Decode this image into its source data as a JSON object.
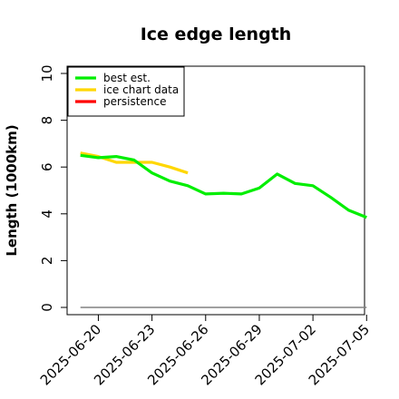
{
  "chart_data": {
    "type": "line",
    "title": "Ice edge length",
    "xlabel": "",
    "ylabel": "Length (1000km)",
    "ylim": [
      0,
      10
    ],
    "xlim": [
      "2025-06-18",
      "2025-07-06"
    ],
    "x_ticks": [
      "2025-06-20",
      "2025-06-23",
      "2025-06-26",
      "2025-06-29",
      "2025-07-02",
      "2025-07-05"
    ],
    "y_ticks": [
      "0",
      "2",
      "4",
      "6",
      "8",
      "10"
    ],
    "grid": false,
    "legend_position": "top-left",
    "series": [
      {
        "name": "best est.",
        "color": "#00ee00",
        "x": [
          "2025-06-19",
          "2025-06-20",
          "2025-06-21",
          "2025-06-22",
          "2025-06-23",
          "2025-06-24",
          "2025-06-25",
          "2025-06-26",
          "2025-06-27",
          "2025-06-28",
          "2025-06-29",
          "2025-06-30",
          "2025-07-01",
          "2025-07-02",
          "2025-07-03",
          "2025-07-04",
          "2025-07-05"
        ],
        "y": [
          6.5,
          6.4,
          6.45,
          6.3,
          5.75,
          5.4,
          5.2,
          4.85,
          4.88,
          4.85,
          5.1,
          5.7,
          5.3,
          5.2,
          4.7,
          4.15,
          3.85
        ]
      },
      {
        "name": "ice chart data",
        "color": "#ffd700",
        "x": [
          "2025-06-19",
          "2025-06-20",
          "2025-06-21",
          "2025-06-22",
          "2025-06-23",
          "2025-06-24",
          "2025-06-25"
        ],
        "y": [
          6.6,
          6.45,
          6.2,
          6.2,
          6.2,
          6.0,
          5.75
        ]
      },
      {
        "name": "persistence",
        "color": "#ff0000",
        "x": [],
        "y": []
      },
      {
        "name": "",
        "color": "#808080",
        "x": [
          "2025-06-19",
          "2025-07-05"
        ],
        "y": [
          0,
          0
        ]
      }
    ]
  }
}
